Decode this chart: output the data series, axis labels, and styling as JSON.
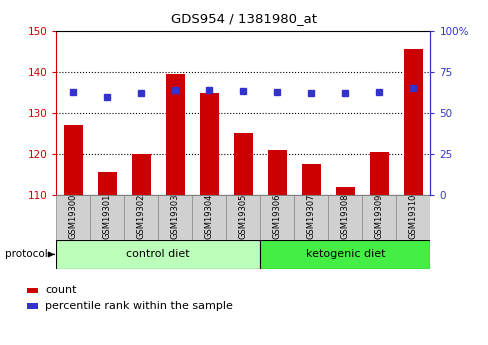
{
  "title": "GDS954 / 1381980_at",
  "samples": [
    "GSM19300",
    "GSM19301",
    "GSM19302",
    "GSM19303",
    "GSM19304",
    "GSM19305",
    "GSM19306",
    "GSM19307",
    "GSM19308",
    "GSM19309",
    "GSM19310"
  ],
  "counts": [
    127,
    115.5,
    120,
    139.5,
    135,
    125,
    121,
    117.5,
    112,
    120.5,
    145.5
  ],
  "percentile_ranks": [
    63,
    60,
    62,
    64,
    64,
    63.5,
    63,
    62.5,
    62,
    63,
    65
  ],
  "ylim_left": [
    110,
    150
  ],
  "ylim_right": [
    0,
    100
  ],
  "yticks_left": [
    110,
    120,
    130,
    140,
    150
  ],
  "yticks_right": [
    0,
    25,
    50,
    75,
    100
  ],
  "bar_color": "#cc0000",
  "dot_color": "#3333cc",
  "control_diet_indices": [
    0,
    1,
    2,
    3,
    4,
    5
  ],
  "ketogenic_diet_indices": [
    6,
    7,
    8,
    9,
    10
  ],
  "control_label": "control diet",
  "ketogenic_label": "ketogenic diet",
  "protocol_label": "protocol",
  "legend_count": "count",
  "legend_percentile": "percentile rank within the sample",
  "bg_plot": "#ffffff",
  "bg_ticklabels": "#d0d0d0",
  "bg_control": "#bbffbb",
  "bg_ketogenic": "#44ee44",
  "grid_color": "#000000",
  "left_axis_color": "#cc0000",
  "right_axis_color": "#3333cc",
  "border_color": "#000000"
}
